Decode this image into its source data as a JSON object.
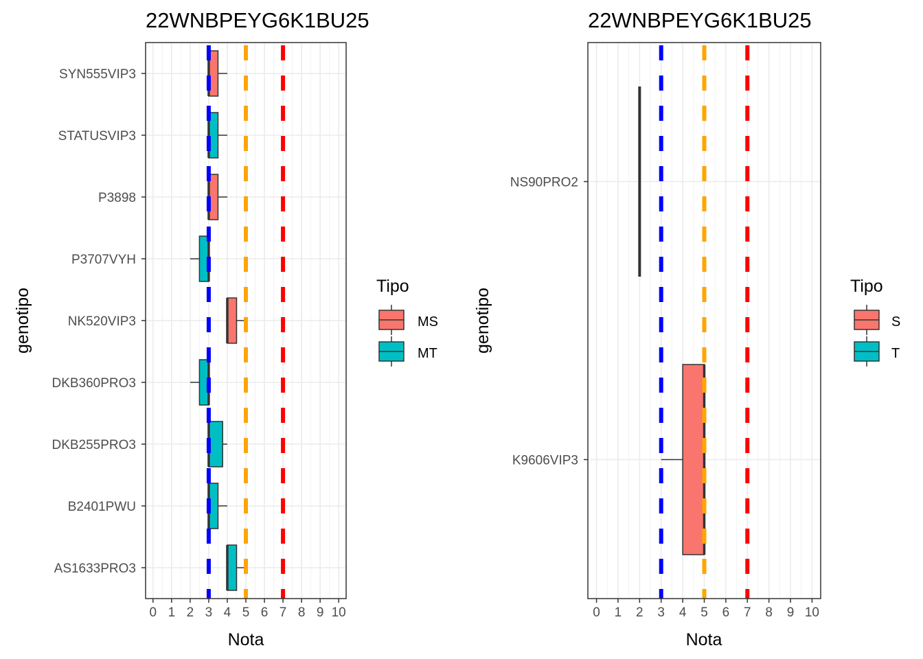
{
  "chart_data": [
    {
      "type": "boxplot",
      "orientation": "horizontal",
      "title": "22WNBPEYG6K1BU25",
      "xlabel": "Nota",
      "ylabel": "genotipo",
      "xlim": [
        -0.4,
        10.4
      ],
      "x_ticks": [
        "0",
        "1",
        "2",
        "3",
        "4",
        "5",
        "6",
        "7",
        "8",
        "9",
        "10"
      ],
      "grid": true,
      "legend": {
        "title": "Tipo",
        "position": "right",
        "entries": [
          {
            "label": "MS",
            "color": "#F8766D"
          },
          {
            "label": "MT",
            "color": "#00BFC4"
          }
        ]
      },
      "reference_lines": [
        {
          "x": 3,
          "color": "#0000FF",
          "style": "dashed"
        },
        {
          "x": 5,
          "color": "#FFA500",
          "style": "dashed"
        },
        {
          "x": 7,
          "color": "#FF0000",
          "style": "dashed"
        }
      ],
      "categories": [
        "SYN555VIP3",
        "STATUSVIP3",
        "P3898",
        "P3707VYH",
        "NK520VIP3",
        "DKB360PRO3",
        "DKB255PRO3",
        "B2401PWU",
        "AS1633PRO3"
      ],
      "boxes": [
        {
          "category": "SYN555VIP3",
          "tipo": "MS",
          "min": 3,
          "q1": 3,
          "median": 3,
          "q3": 3.5,
          "max": 4
        },
        {
          "category": "STATUSVIP3",
          "tipo": "MT",
          "min": 3,
          "q1": 3,
          "median": 3,
          "q3": 3.5,
          "max": 4
        },
        {
          "category": "P3898",
          "tipo": "MS",
          "min": 3,
          "q1": 3,
          "median": 3,
          "q3": 3.5,
          "max": 4
        },
        {
          "category": "P3707VYH",
          "tipo": "MT",
          "min": 2,
          "q1": 2.5,
          "median": 3,
          "q3": 3,
          "max": 3
        },
        {
          "category": "NK520VIP3",
          "tipo": "MS",
          "min": 4,
          "q1": 4,
          "median": 4,
          "q3": 4.5,
          "max": 5
        },
        {
          "category": "DKB360PRO3",
          "tipo": "MT",
          "min": 2,
          "q1": 2.5,
          "median": 3,
          "q3": 3,
          "max": 3
        },
        {
          "category": "DKB255PRO3",
          "tipo": "MT",
          "min": 3,
          "q1": 3,
          "median": 3,
          "q3": 3.75,
          "max": 4
        },
        {
          "category": "B2401PWU",
          "tipo": "MT",
          "min": 3,
          "q1": 3,
          "median": 3,
          "q3": 3.5,
          "max": 4
        },
        {
          "category": "AS1633PRO3",
          "tipo": "MT",
          "min": 4,
          "q1": 4,
          "median": 4,
          "q3": 4.5,
          "max": 5
        }
      ]
    },
    {
      "type": "boxplot",
      "orientation": "horizontal",
      "title": "22WNBPEYG6K1BU25",
      "xlabel": "Nota",
      "ylabel": "genotipo",
      "xlim": [
        -0.4,
        10.4
      ],
      "x_ticks": [
        "0",
        "1",
        "2",
        "3",
        "4",
        "5",
        "6",
        "7",
        "8",
        "9",
        "10"
      ],
      "grid": true,
      "legend": {
        "title": "Tipo",
        "position": "right",
        "entries": [
          {
            "label": "S",
            "color": "#F8766D"
          },
          {
            "label": "T",
            "color": "#00BFC4"
          }
        ]
      },
      "reference_lines": [
        {
          "x": 3,
          "color": "#0000FF",
          "style": "dashed"
        },
        {
          "x": 5,
          "color": "#FFA500",
          "style": "dashed"
        },
        {
          "x": 7,
          "color": "#FF0000",
          "style": "dashed"
        }
      ],
      "categories": [
        "NS90PRO2",
        "K9606VIP3"
      ],
      "boxes": [
        {
          "category": "NS90PRO2",
          "tipo": "T",
          "min": 2,
          "q1": 2,
          "median": 2,
          "q3": 2,
          "max": 2
        },
        {
          "category": "K9606VIP3",
          "tipo": "S",
          "min": 3,
          "q1": 4,
          "median": 5,
          "q3": 5,
          "max": 5
        }
      ]
    }
  ]
}
